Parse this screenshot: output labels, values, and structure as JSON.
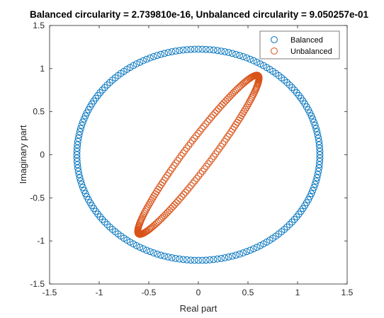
{
  "chart_data": {
    "type": "scatter",
    "title": "Balanced circularity = 2.739810e-16, Unbalanced circularity = 9.050257e-01",
    "xlabel": "Real part",
    "ylabel": "Imaginary part",
    "xlim": [
      -1.5,
      1.5
    ],
    "ylim": [
      -1.5,
      1.5
    ],
    "xticks": [
      "-1.5",
      "-1",
      "-0.5",
      "0",
      "0.5",
      "1",
      "1.5"
    ],
    "yticks": [
      "-1.5",
      "-1",
      "-0.5",
      "0",
      "0.5",
      "1",
      "1.5"
    ],
    "grid": false,
    "legend_position": "top-right",
    "marker": "circle-open",
    "series": [
      {
        "name": "Balanced",
        "color": "#0072BD",
        "shape": "circle",
        "center": [
          0,
          0
        ],
        "radius": 1.225,
        "n_points": 200
      },
      {
        "name": "Unbalanced",
        "color": "#D95319",
        "shape": "ellipse",
        "center": [
          0,
          0
        ],
        "extreme_points": [
          [
            0.6,
            0.92
          ],
          [
            -0.6,
            -0.92
          ]
        ],
        "n_points": 200
      }
    ]
  }
}
